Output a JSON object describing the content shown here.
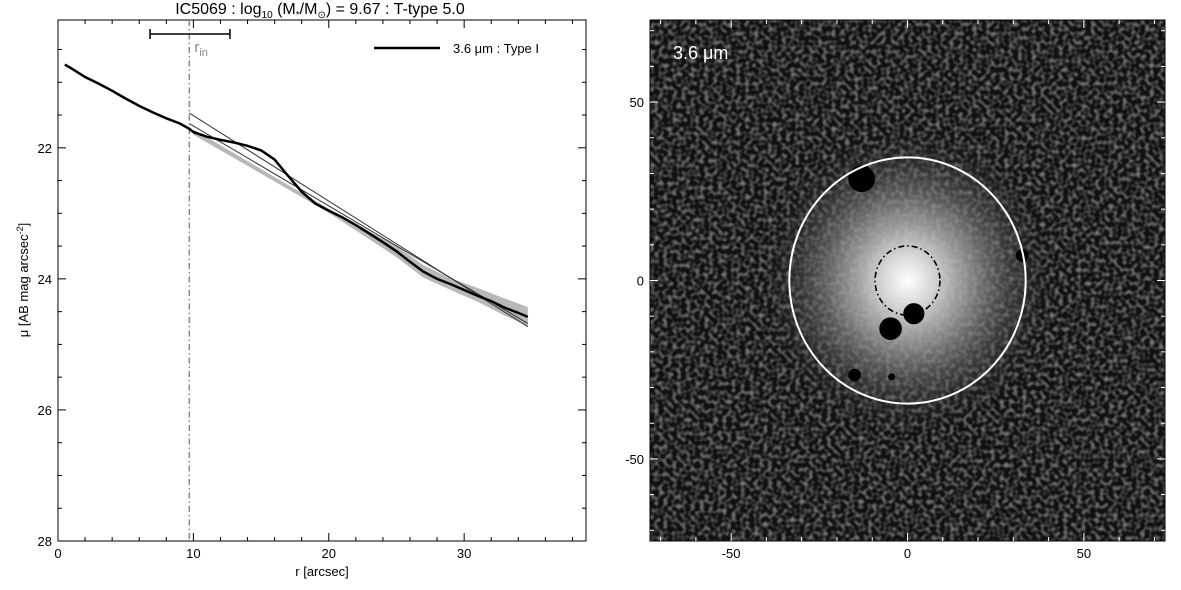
{
  "title": {
    "galaxy": "IC5069",
    "sep1": " : ",
    "log_prefix": "log",
    "log_base": "10",
    "mass_open": " (M",
    "mass_star": "*",
    "mass_mid": "/M",
    "mass_sun": "⊙",
    "mass_close": ")",
    "mass_value": " = 9.67",
    "sep2": " : ",
    "ttype": "T-type 5.0"
  },
  "chart_data": [
    {
      "type": "line",
      "title": "IC5069 : log10 (M*/M⊙) = 9.67 : T-type 5.0",
      "xlabel": "r [arcsec]",
      "ylabel": "μ [AB mag arcsec-2]",
      "ylabel_parts": {
        "main": "μ [AB mag arcsec",
        "sup": "-2",
        "end": "]"
      },
      "xlim": [
        0,
        39
      ],
      "ylim": [
        28,
        20.05
      ],
      "y_inverted": true,
      "x_ticks": [
        0,
        10,
        20,
        30
      ],
      "y_ticks": [
        22,
        24,
        26,
        28
      ],
      "x_tick_labels": [
        "0",
        "10",
        "20",
        "30"
      ],
      "y_tick_labels": [
        "22",
        "24",
        "26",
        "28"
      ],
      "grid": false,
      "legend": {
        "placement": "top-right",
        "entries": [
          "3.6 μm : Type I"
        ]
      },
      "series": [
        {
          "name": "3.6 μm : Type I",
          "x": [
            0.5,
            1,
            2,
            3,
            4,
            5,
            6,
            7,
            8,
            9,
            9.7,
            10,
            11,
            12,
            13,
            14,
            15,
            16,
            17,
            18,
            19,
            20,
            21,
            22,
            23,
            24,
            25,
            26,
            27,
            28,
            29,
            30,
            31,
            32,
            33,
            34,
            34.7
          ],
          "y": [
            20.73,
            20.79,
            20.92,
            21.02,
            21.13,
            21.25,
            21.36,
            21.46,
            21.55,
            21.63,
            21.71,
            21.76,
            21.83,
            21.88,
            21.92,
            21.97,
            22.04,
            22.18,
            22.43,
            22.67,
            22.85,
            22.96,
            23.06,
            23.18,
            23.31,
            23.44,
            23.58,
            23.74,
            23.89,
            24.0,
            24.08,
            24.17,
            24.26,
            24.34,
            24.44,
            24.52,
            24.58
          ]
        }
      ],
      "uncertainty_band": {
        "x": [
          10,
          20,
          25,
          27,
          29,
          31,
          33,
          34.7
        ],
        "y_low": [
          21.72,
          22.93,
          23.5,
          23.79,
          23.99,
          24.14,
          24.3,
          24.43
        ],
        "y_high": [
          21.8,
          22.99,
          23.67,
          23.98,
          24.17,
          24.35,
          24.56,
          24.72
        ]
      },
      "fit_lines": [
        {
          "x": [
            9.7,
            34.7
          ],
          "y": [
            21.47,
            24.73
          ]
        },
        {
          "x": [
            9.7,
            34.7
          ],
          "y": [
            21.63,
            24.68
          ]
        }
      ],
      "annotations": {
        "r_in_label": {
          "main": "r",
          "sub": "in"
        },
        "r_in_x": 9.7,
        "r_in_range": [
          6.8,
          12.7
        ]
      }
    },
    {
      "type": "image",
      "band_label": "3.6 μm",
      "xlim": [
        -73,
        73
      ],
      "ylim": [
        -73,
        73
      ],
      "x_ticks": [
        -50,
        0,
        50
      ],
      "y_ticks": [
        -50,
        0,
        50
      ],
      "x_tick_labels": [
        "-50",
        "0",
        "50"
      ],
      "y_tick_labels": [
        "-50",
        "0",
        "50"
      ],
      "outer_ellipse": {
        "cx": 0,
        "cy": 0,
        "rx": 33.5,
        "ry": 34.5,
        "color": "#ffffff"
      },
      "inner_ellipse": {
        "cx": 0,
        "cy": 0,
        "rx": 9.2,
        "ry": 9.7,
        "style": "dash-dot",
        "color": "#000000"
      },
      "masks": [
        {
          "x": -13,
          "y": 28.5,
          "r": 3.8
        },
        {
          "x": -4.8,
          "y": -13.5,
          "r": 3.2
        },
        {
          "x": 1.8,
          "y": -9.3,
          "r": 3.0
        },
        {
          "x": -15,
          "y": -26.5,
          "r": 1.8
        },
        {
          "x": -4.5,
          "y": -27,
          "r": 1.0
        },
        {
          "x": 32.5,
          "y": 7,
          "r": 1.8
        }
      ]
    }
  ]
}
